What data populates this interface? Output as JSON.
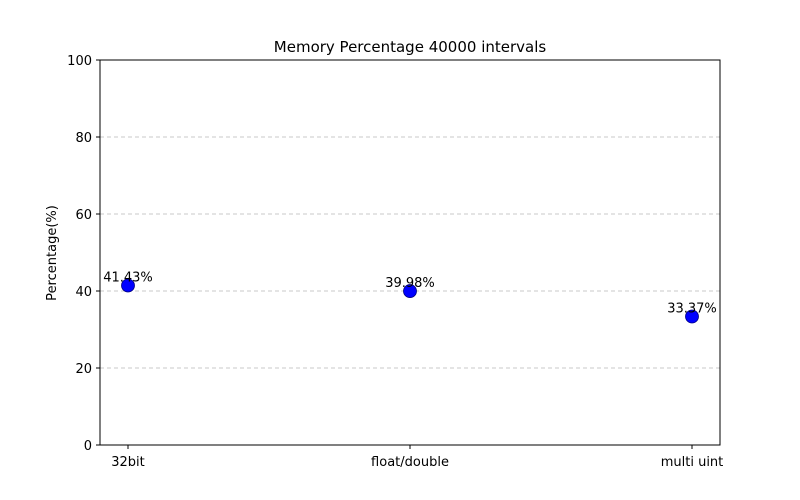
{
  "chart_data": {
    "type": "scatter",
    "title": "Memory Percentage 40000 intervals",
    "xlabel": "",
    "ylabel": "Percentage(%)",
    "categories": [
      "32bit",
      "float/double",
      "multi uint"
    ],
    "values": [
      41.43,
      39.98,
      33.37
    ],
    "data_labels": [
      "41.43%",
      "39.98%",
      "33.37%"
    ],
    "ylim": [
      0,
      100
    ],
    "yticks": [
      0,
      20,
      40,
      60,
      80,
      100
    ],
    "grid": "y-dashed",
    "legend": "none",
    "marker_color": "#0000ff",
    "grid_color": "#c8c8c8"
  }
}
